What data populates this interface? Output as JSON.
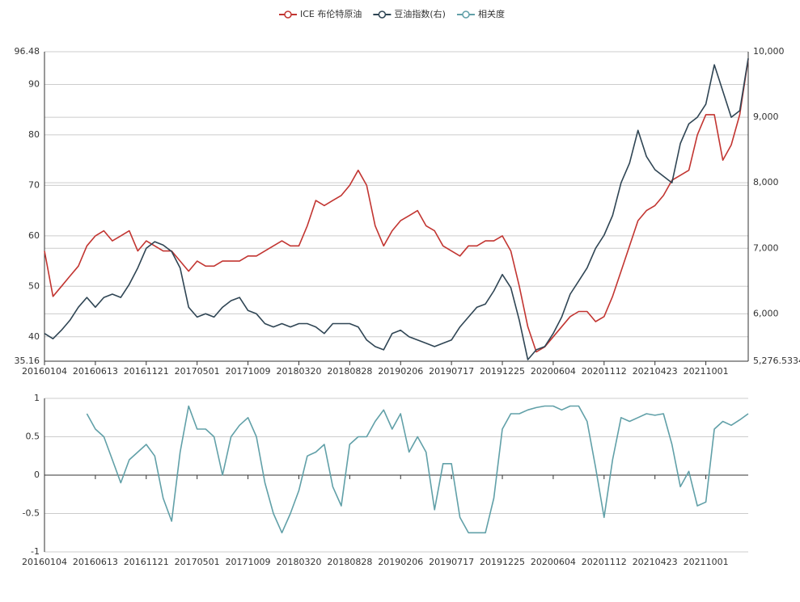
{
  "chart_data": [
    {
      "type": "line",
      "categories": [
        "20160104",
        null,
        null,
        null,
        null,
        null,
        "20160613",
        null,
        null,
        null,
        null,
        null,
        "20161121",
        null,
        null,
        null,
        null,
        null,
        "20170501",
        null,
        null,
        null,
        null,
        null,
        "20171009",
        null,
        null,
        null,
        null,
        null,
        "20180320",
        null,
        null,
        null,
        null,
        null,
        "20180828",
        null,
        null,
        null,
        null,
        null,
        "20190206",
        null,
        null,
        null,
        null,
        null,
        "20190717",
        null,
        null,
        null,
        null,
        null,
        "20191225",
        null,
        null,
        null,
        null,
        null,
        "20200604",
        null,
        null,
        null,
        null,
        null,
        "20201112",
        null,
        null,
        null,
        null,
        null,
        "20210423",
        null,
        null,
        null,
        null,
        null,
        "20211001",
        null,
        null,
        null,
        null,
        null
      ],
      "ylim": [
        35.16,
        96.48
      ],
      "yticks": [
        35.16,
        40,
        50,
        60,
        70,
        80,
        90,
        96.48
      ],
      "y2lim": [
        5276.5334,
        10000
      ],
      "y2ticks": [
        {
          "value": 5276.5334,
          "label": "5,276.5334"
        },
        {
          "value": 6000,
          "label": "6,000"
        },
        {
          "value": 7000,
          "label": "7,000"
        },
        {
          "value": 8000,
          "label": "8,000"
        },
        {
          "value": 9000,
          "label": "9,000"
        },
        {
          "value": 10000,
          "label": "10,000"
        }
      ],
      "grid": true,
      "series": [
        {
          "name": "ICE 布伦特原油",
          "color": "#c23531",
          "values": [
            57,
            48,
            50,
            52,
            54,
            58,
            60,
            61,
            59,
            60,
            61,
            57,
            59,
            58,
            57,
            57,
            55,
            53,
            55,
            54,
            54,
            55,
            55,
            55,
            56,
            56,
            57,
            58,
            59,
            58,
            58,
            62,
            67,
            66,
            67,
            68,
            70,
            73,
            70,
            62,
            58,
            61,
            63,
            64,
            65,
            62,
            61,
            58,
            57,
            56,
            58,
            58,
            59,
            59,
            60,
            57,
            50,
            42,
            37,
            38,
            40,
            42,
            44,
            45,
            45,
            43,
            44,
            48,
            53,
            58,
            63,
            65,
            66,
            68,
            71,
            72,
            73,
            80,
            84,
            84,
            75,
            78,
            84,
            95
          ]
        },
        {
          "name": "豆油指数(右)",
          "color": "#2f4554",
          "axis": "y2",
          "values": [
            5700,
            5620,
            5750,
            5900,
            6100,
            6250,
            6100,
            6250,
            6300,
            6250,
            6450,
            6700,
            7000,
            7100,
            7050,
            6950,
            6700,
            6100,
            5950,
            6000,
            5950,
            6100,
            6200,
            6250,
            6050,
            6000,
            5850,
            5800,
            5850,
            5800,
            5850,
            5850,
            5800,
            5700,
            5850,
            5850,
            5850,
            5800,
            5600,
            5500,
            5450,
            5700,
            5750,
            5650,
            5600,
            5550,
            5500,
            5550,
            5600,
            5800,
            5950,
            6100,
            6150,
            6350,
            6600,
            6400,
            5900,
            5300,
            5450,
            5500,
            5700,
            5950,
            6300,
            6500,
            6700,
            7000,
            7200,
            7500,
            8000,
            8300,
            8800,
            8400,
            8200,
            8100,
            8000,
            8600,
            8900,
            9000,
            9200,
            9800,
            9400,
            9000,
            9100,
            9900
          ]
        }
      ]
    },
    {
      "type": "line",
      "categories": [
        "20160104",
        null,
        null,
        null,
        null,
        null,
        "20160613",
        null,
        null,
        null,
        null,
        null,
        "20161121",
        null,
        null,
        null,
        null,
        null,
        "20170501",
        null,
        null,
        null,
        null,
        null,
        "20171009",
        null,
        null,
        null,
        null,
        null,
        "20180320",
        null,
        null,
        null,
        null,
        null,
        "20180828",
        null,
        null,
        null,
        null,
        null,
        "20190206",
        null,
        null,
        null,
        null,
        null,
        "20190717",
        null,
        null,
        null,
        null,
        null,
        "20191225",
        null,
        null,
        null,
        null,
        null,
        "20200604",
        null,
        null,
        null,
        null,
        null,
        "20201112",
        null,
        null,
        null,
        null,
        null,
        "20210423",
        null,
        null,
        null,
        null,
        null,
        "20211001",
        null,
        null,
        null,
        null,
        null
      ],
      "ylim": [
        -1,
        1
      ],
      "yticks": [
        -1,
        -0.5,
        0,
        0.5,
        1
      ],
      "grid": true,
      "series": [
        {
          "name": "相关度",
          "color": "#61a0a8",
          "values": [
            null,
            null,
            null,
            null,
            null,
            0.8,
            0.6,
            0.5,
            0.2,
            -0.1,
            0.2,
            0.3,
            0.4,
            0.25,
            -0.3,
            -0.6,
            0.3,
            0.9,
            0.6,
            0.6,
            0.5,
            0.0,
            0.5,
            0.65,
            0.75,
            0.5,
            -0.1,
            -0.5,
            -0.75,
            -0.5,
            -0.2,
            0.25,
            0.3,
            0.4,
            -0.15,
            -0.4,
            0.4,
            0.5,
            0.5,
            0.7,
            0.85,
            0.6,
            0.8,
            0.3,
            0.5,
            0.3,
            -0.45,
            0.15,
            0.15,
            -0.55,
            -0.75,
            -0.75,
            -0.75,
            -0.3,
            0.6,
            0.8,
            0.8,
            0.85,
            0.88,
            0.9,
            0.9,
            0.85,
            0.9,
            0.9,
            0.7,
            0.1,
            -0.55,
            0.2,
            0.75,
            0.7,
            0.75,
            0.8,
            0.78,
            0.8,
            0.4,
            -0.15,
            0.05,
            -0.4,
            -0.35,
            0.6,
            0.7,
            0.65,
            0.72,
            0.8
          ]
        }
      ]
    }
  ]
}
